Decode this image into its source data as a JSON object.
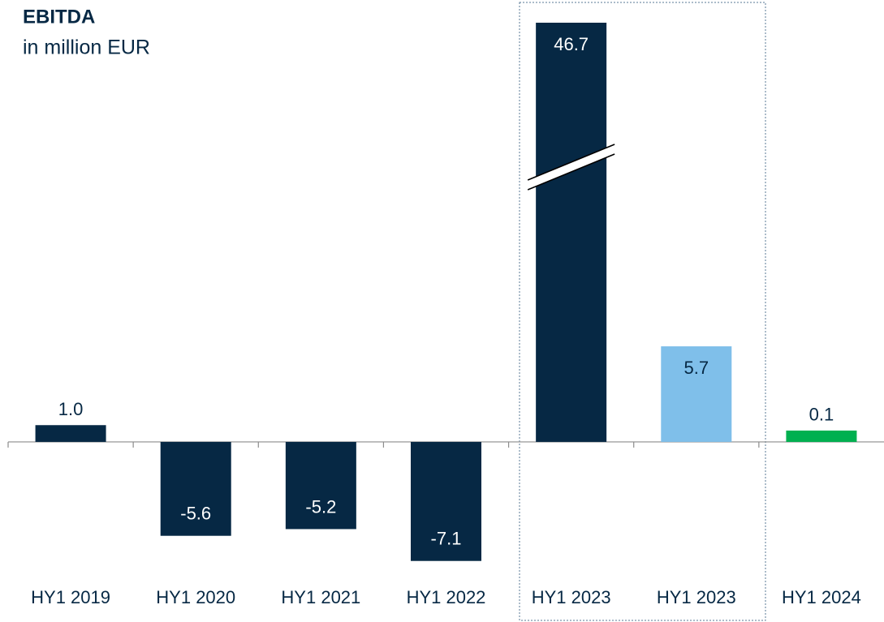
{
  "chart_data": {
    "type": "bar",
    "title": "EBITDA",
    "subtitle": "in million EUR",
    "categories": [
      "HY1 2019",
      "HY1 2020",
      "HY1 2021",
      "HY1 2022",
      "HY1 2023",
      "HY1 2023",
      "HY1 2024"
    ],
    "values": [
      1.0,
      -5.6,
      -5.2,
      -7.1,
      46.7,
      5.7,
      0.1
    ],
    "value_labels": [
      "1.0",
      "-5.6",
      "-5.2",
      "-7.1",
      "46.7",
      "5.7",
      "0.1"
    ],
    "colors": [
      "#062844",
      "#062844",
      "#062844",
      "#062844",
      "#062844",
      "#7fbfea",
      "#00b050"
    ],
    "ylim": [
      -7.5,
      25
    ],
    "grid": false
  }
}
